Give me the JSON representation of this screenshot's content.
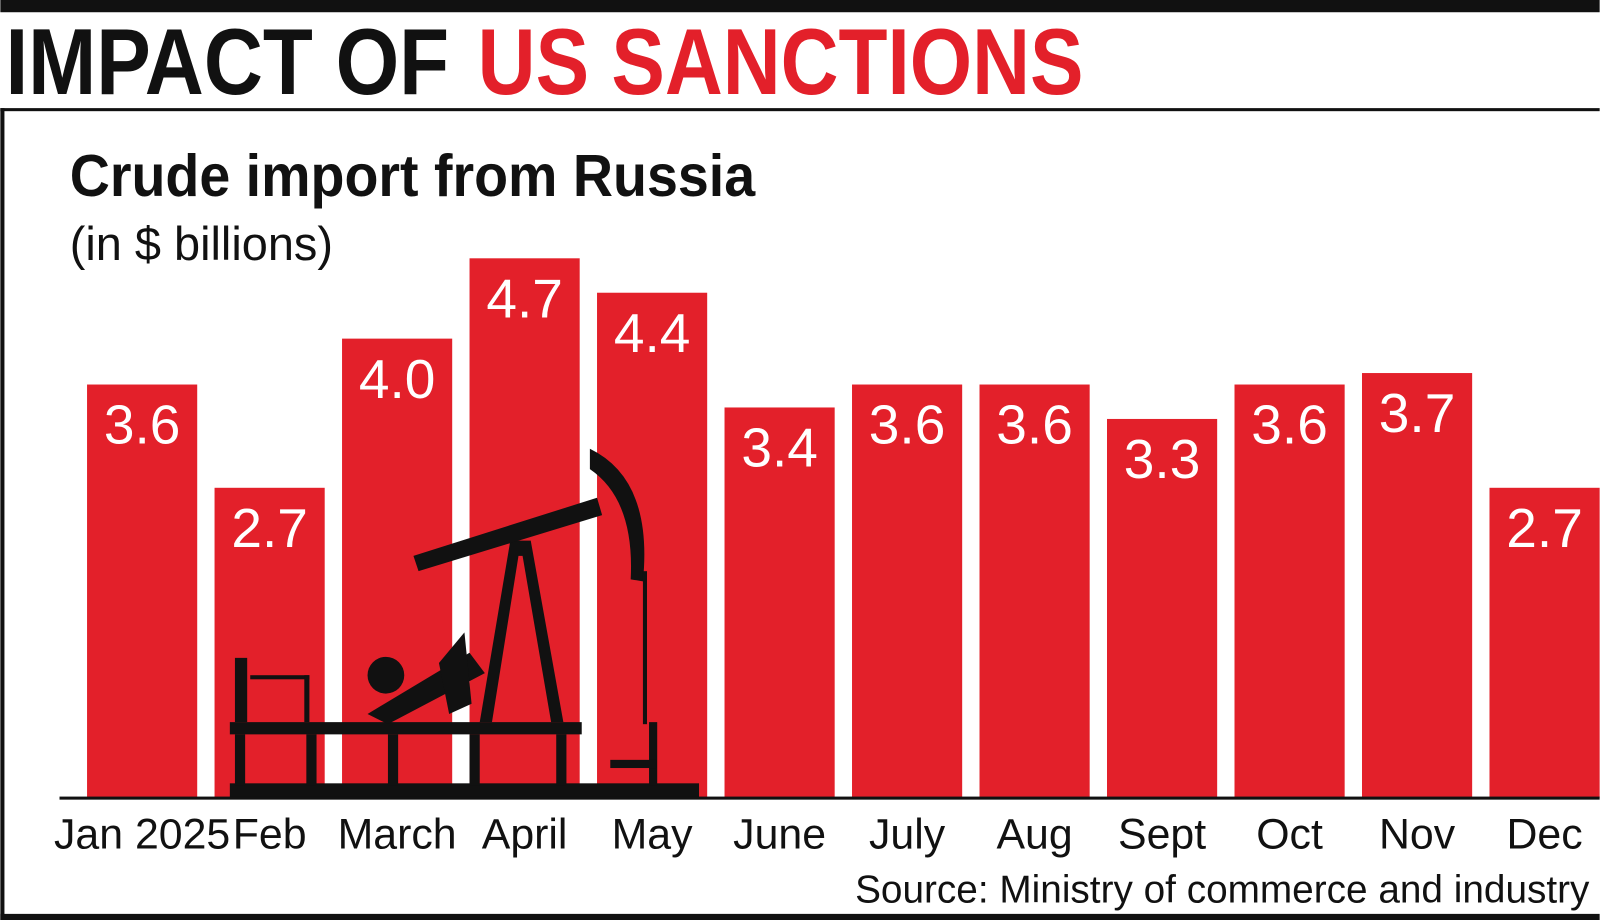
{
  "chart_data": {
    "type": "bar",
    "title_parts": [
      "IMPACT OF",
      "US SANCTIONS"
    ],
    "title_colors": [
      "#111111",
      "#e3202a"
    ],
    "subtitle": "Crude import from Russia",
    "ylabel": "(in $ billions)",
    "categories": [
      "Jan 2025",
      "Feb",
      "March",
      "April",
      "May",
      "June",
      "July",
      "Aug",
      "Sept",
      "Oct",
      "Nov",
      "Dec"
    ],
    "values": [
      3.6,
      2.7,
      4.0,
      4.7,
      4.4,
      3.4,
      3.6,
      3.6,
      3.3,
      3.6,
      3.7,
      2.7
    ],
    "value_labels": [
      "3.6",
      "2.7",
      "4.0",
      "4.7",
      "4.4",
      "3.4",
      "3.6",
      "3.6",
      "3.3",
      "3.6",
      "3.7",
      "2.7"
    ],
    "color": "#e3202a",
    "ylim": [
      0,
      6.8
    ],
    "source": "Source: Ministry of commerce and industry"
  }
}
